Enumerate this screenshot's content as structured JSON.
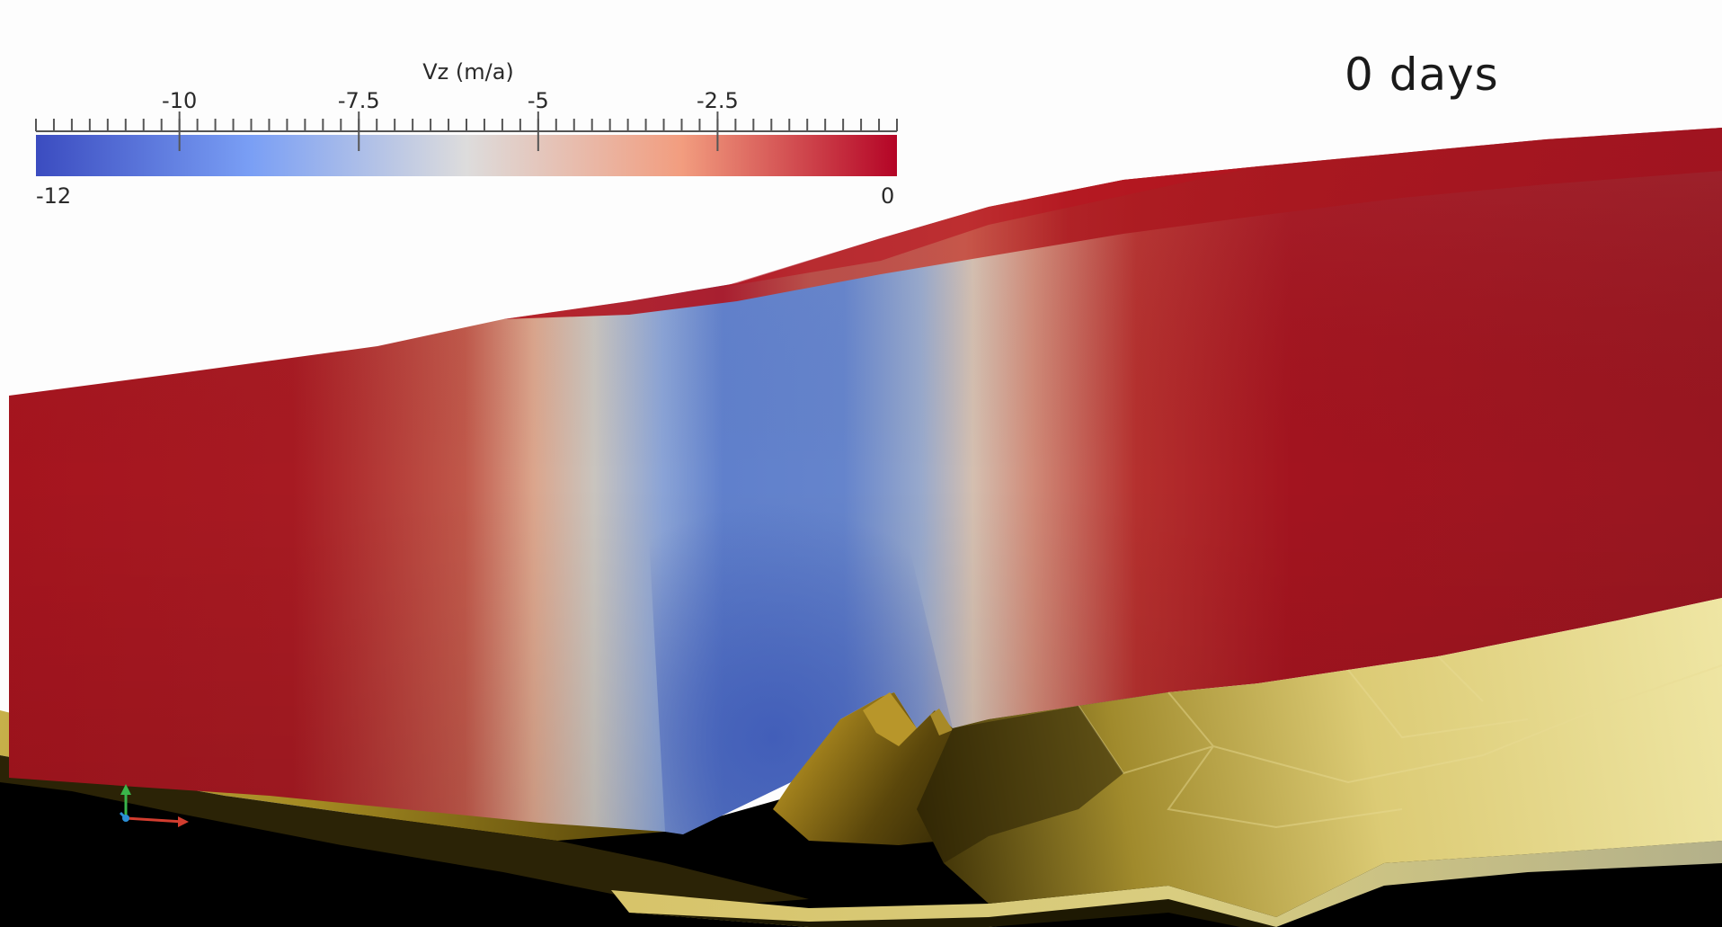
{
  "overlay": {
    "time_label": "0 days"
  },
  "colorbar": {
    "title": "Vz (m/a)",
    "min_label": "-12",
    "max_label": "0",
    "min_value": -12,
    "max_value": 0,
    "major_ticks": [
      "-10",
      "-7.5",
      "-5",
      "-2.5"
    ],
    "major_values": [
      -10,
      -7.5,
      -5,
      -2.5
    ],
    "colors": {
      "low": "#3b58bd",
      "mid_low": "#8fb1f0",
      "mid": "#dcdcdc",
      "mid_high": "#f0a284",
      "high": "#b40426"
    }
  },
  "scene": {
    "field_colors": {
      "ice_red": "#a5141e",
      "ice_blue": "#5676c4",
      "bedrock_light": "#e8dc8a",
      "bedrock_dark": "#5a4a10",
      "shadow": "#000000"
    }
  }
}
